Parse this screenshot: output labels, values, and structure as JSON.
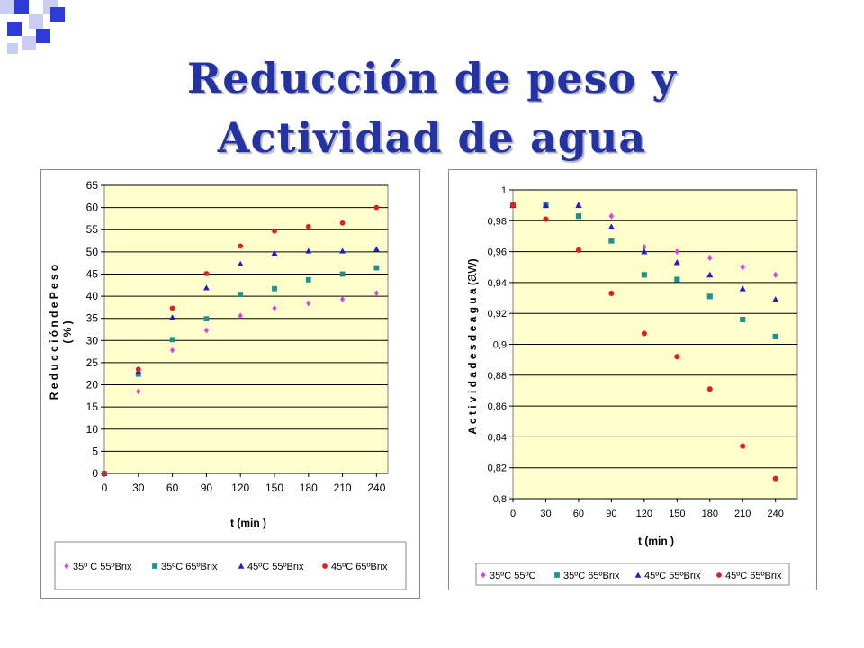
{
  "slide": {
    "title_line1": "Reducción de peso y",
    "title_line2": "Actividad de agua",
    "decoration": "blue-squares-corner-decoration",
    "colors": {
      "title": "#2433a3",
      "plot_area": "#ffffcc",
      "decoration": "#2e3bd6"
    }
  },
  "chart_data": [
    {
      "type": "scatter",
      "title": "",
      "xlabel": "t (min )",
      "ylabel_line1": "R e d u c c i ó n  d e  P e s o",
      "ylabel_line2": "( %  )",
      "xlim": [
        0,
        250
      ],
      "ylim": [
        0,
        65
      ],
      "xticks": [
        "0",
        "30",
        "60",
        "90",
        "120",
        "150",
        "180",
        "210",
        "240"
      ],
      "yticks": [
        "0",
        "5",
        "10",
        "15",
        "20",
        "25",
        "30",
        "35",
        "40",
        "45",
        "50",
        "55",
        "60",
        "65"
      ],
      "grid": "horizontal",
      "legend": "bottom",
      "series": [
        {
          "name": "35º C 55ºBrix",
          "color": "#e040e0",
          "marker": "diamond",
          "x": [
            0,
            30,
            60,
            90,
            120,
            150,
            180,
            210,
            240
          ],
          "y": [
            0,
            18.5,
            27.8,
            32.3,
            35.6,
            37.3,
            38.4,
            39.3,
            40.7
          ]
        },
        {
          "name": "35ºC 65ºBrix",
          "color": "#1f8f8f",
          "marker": "square",
          "x": [
            0,
            30,
            60,
            90,
            120,
            150,
            180,
            210,
            240
          ],
          "y": [
            0,
            22.4,
            30.2,
            34.9,
            40.4,
            41.7,
            43.7,
            45.0,
            46.4
          ]
        },
        {
          "name": "45ºC 55ºBrix",
          "color": "#2020c8",
          "marker": "triangle",
          "x": [
            0,
            30,
            60,
            90,
            120,
            150,
            180,
            210,
            240
          ],
          "y": [
            0,
            23.0,
            35.2,
            41.9,
            47.3,
            49.7,
            50.2,
            50.2,
            50.6
          ]
        },
        {
          "name": "45ºC 65ºBrix",
          "color": "#e02020",
          "marker": "circle",
          "x": [
            0,
            30,
            60,
            90,
            120,
            150,
            180,
            210,
            240
          ],
          "y": [
            0,
            23.5,
            37.3,
            45.1,
            51.3,
            54.7,
            55.7,
            56.5,
            60.0
          ]
        }
      ]
    },
    {
      "type": "scatter",
      "title": "",
      "xlabel": "t (min )",
      "ylabel_prefix": "A c t i v i d a d e s  d e  a g u a  (",
      "ylabel_aw": "aw",
      "ylabel_suffix": ")",
      "xlim": [
        0,
        260
      ],
      "ylim": [
        0.8,
        1
      ],
      "xticks": [
        "0",
        "30",
        "60",
        "90",
        "120",
        "150",
        "180",
        "210",
        "240"
      ],
      "yticks": [
        "0,8",
        "0,82",
        "0,84",
        "0,86",
        "0,88",
        "0,9",
        "0,92",
        "0,94",
        "0,96",
        "0,98",
        "1"
      ],
      "grid": "horizontal",
      "legend": "bottom",
      "series": [
        {
          "name": "35ºC 55ºC",
          "color": "#e040e0",
          "marker": "diamond",
          "x": [
            0,
            30,
            60,
            90,
            120,
            150,
            180,
            210,
            240
          ],
          "y": [
            0.99,
            0.99,
            0.99,
            0.983,
            0.963,
            0.96,
            0.956,
            0.95,
            0.945
          ]
        },
        {
          "name": "35ºC 65ºBrix",
          "color": "#1f8f8f",
          "marker": "square",
          "x": [
            0,
            30,
            60,
            90,
            120,
            150,
            180,
            210,
            240
          ],
          "y": [
            0.99,
            0.99,
            0.983,
            0.967,
            0.945,
            0.942,
            0.931,
            0.916,
            0.905
          ]
        },
        {
          "name": "45ºC 55ºBrix",
          "color": "#2020c8",
          "marker": "triangle",
          "x": [
            0,
            30,
            60,
            90,
            120,
            150,
            180,
            210,
            240
          ],
          "y": [
            0.99,
            0.99,
            0.99,
            0.976,
            0.96,
            0.953,
            0.945,
            0.936,
            0.929
          ]
        },
        {
          "name": "45ºC 65ºBrix",
          "color": "#e02020",
          "marker": "circle",
          "x": [
            0,
            30,
            60,
            90,
            120,
            150,
            180,
            210,
            240
          ],
          "y": [
            0.99,
            0.981,
            0.961,
            0.933,
            0.907,
            0.892,
            0.871,
            0.834,
            0.813
          ]
        }
      ]
    }
  ]
}
